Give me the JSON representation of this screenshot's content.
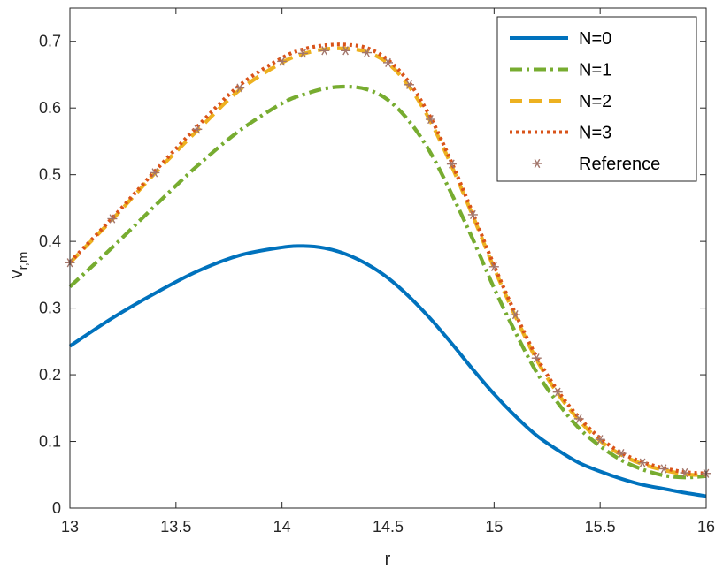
{
  "chart_data": {
    "type": "line",
    "xlabel": "r",
    "ylabel_main": "v",
    "ylabel_sub": "r,m",
    "xlim": [
      13,
      16
    ],
    "ylim": [
      0,
      0.75
    ],
    "xticks": [
      13,
      13.5,
      14,
      14.5,
      15,
      15.5,
      16
    ],
    "xtick_labels": [
      "13",
      "13.5",
      "14",
      "14.5",
      "15",
      "15.5",
      "16"
    ],
    "yticks": [
      0,
      0.1,
      0.2,
      0.3,
      0.4,
      0.5,
      0.6,
      0.7
    ],
    "ytick_labels": [
      "0",
      "0.1",
      "0.2",
      "0.3",
      "0.4",
      "0.5",
      "0.6",
      "0.7"
    ],
    "grid": false,
    "legend_position": "top-right",
    "x": [
      13.0,
      13.2,
      13.4,
      13.6,
      13.8,
      14.0,
      14.1,
      14.2,
      14.3,
      14.4,
      14.5,
      14.6,
      14.7,
      14.8,
      14.9,
      15.0,
      15.1,
      15.2,
      15.3,
      15.4,
      15.5,
      15.6,
      15.7,
      15.8,
      15.9,
      16.0
    ],
    "series": [
      {
        "name": "N=0",
        "style": "solid",
        "color": "#0072BD",
        "values": [
          0.243,
          0.285,
          0.322,
          0.355,
          0.379,
          0.391,
          0.393,
          0.39,
          0.381,
          0.366,
          0.345,
          0.317,
          0.284,
          0.247,
          0.208,
          0.171,
          0.138,
          0.109,
          0.087,
          0.068,
          0.055,
          0.044,
          0.035,
          0.029,
          0.023,
          0.018
        ]
      },
      {
        "name": "N=1",
        "style": "dashdot",
        "color": "#77AC30",
        "values": [
          0.332,
          0.391,
          0.453,
          0.513,
          0.566,
          0.607,
          0.62,
          0.629,
          0.632,
          0.628,
          0.612,
          0.58,
          0.533,
          0.471,
          0.403,
          0.33,
          0.264,
          0.204,
          0.158,
          0.12,
          0.093,
          0.072,
          0.058,
          0.049,
          0.046,
          0.048
        ]
      },
      {
        "name": "N=2",
        "style": "dashed",
        "color": "#EDB120",
        "values": [
          0.368,
          0.433,
          0.502,
          0.566,
          0.627,
          0.668,
          0.681,
          0.688,
          0.689,
          0.684,
          0.667,
          0.632,
          0.58,
          0.513,
          0.438,
          0.36,
          0.288,
          0.223,
          0.172,
          0.132,
          0.101,
          0.08,
          0.066,
          0.057,
          0.051,
          0.049
        ]
      },
      {
        "name": "N=3",
        "style": "dotted",
        "color": "#D95319",
        "values": [
          0.369,
          0.435,
          0.505,
          0.572,
          0.634,
          0.675,
          0.688,
          0.694,
          0.695,
          0.69,
          0.672,
          0.638,
          0.586,
          0.518,
          0.442,
          0.364,
          0.292,
          0.227,
          0.176,
          0.136,
          0.105,
          0.083,
          0.069,
          0.06,
          0.054,
          0.052
        ]
      },
      {
        "name": "Reference",
        "style": "markers",
        "marker": "asterisk",
        "color": "#A2756A",
        "values": [
          0.368,
          0.434,
          0.503,
          0.568,
          0.63,
          0.67,
          0.682,
          0.686,
          0.686,
          0.683,
          0.668,
          0.635,
          0.583,
          0.516,
          0.44,
          0.362,
          0.29,
          0.225,
          0.174,
          0.134,
          0.103,
          0.082,
          0.068,
          0.059,
          0.053,
          0.052
        ]
      }
    ]
  }
}
